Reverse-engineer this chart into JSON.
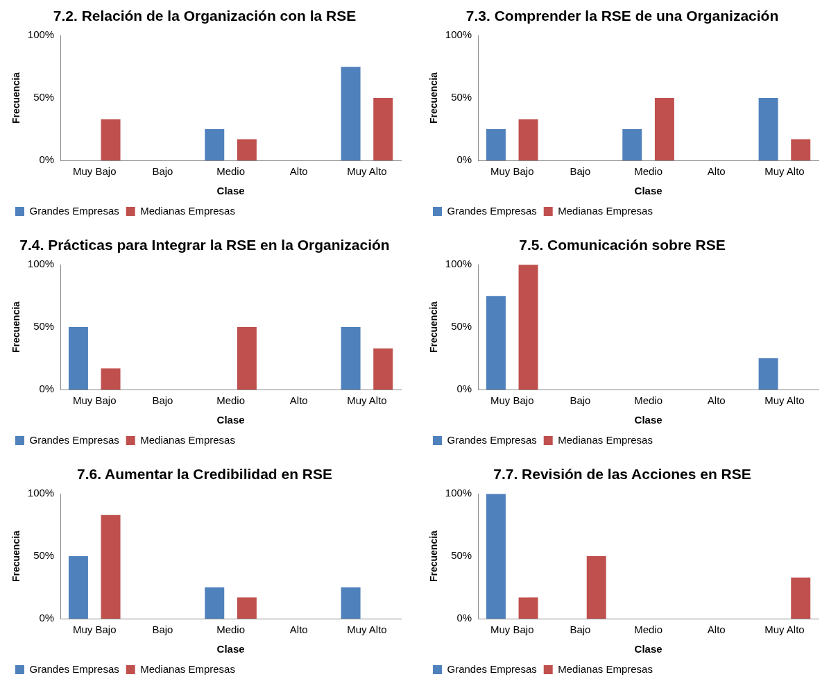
{
  "chart_data": [
    {
      "type": "bar",
      "title": "7.2. Relación de la Organización con la RSE",
      "xlabel": "Clase",
      "ylabel": "Frecuencia",
      "categories": [
        "Muy Bajo",
        "Bajo",
        "Medio",
        "Alto",
        "Muy Alto"
      ],
      "series": [
        {
          "name": "Grandes Empresas",
          "color": "#4f81bd",
          "values": [
            0,
            0,
            25,
            0,
            75
          ]
        },
        {
          "name": "Medianas Empresas",
          "color": "#c0504d",
          "values": [
            33,
            0,
            17,
            0,
            50
          ]
        }
      ],
      "ylim": [
        0,
        100
      ],
      "yticks": [
        {
          "value": 0,
          "label": "0%"
        },
        {
          "value": 50,
          "label": "50%"
        },
        {
          "value": 100,
          "label": "100%"
        }
      ],
      "legend": "bottom"
    },
    {
      "type": "bar",
      "title": "7.3. Comprender la RSE de una Organización",
      "xlabel": "Clase",
      "ylabel": "Frecuencia",
      "categories": [
        "Muy Bajo",
        "Bajo",
        "Medio",
        "Alto",
        "Muy Alto"
      ],
      "series": [
        {
          "name": "Grandes Empresas",
          "color": "#4f81bd",
          "values": [
            25,
            0,
            25,
            0,
            50
          ]
        },
        {
          "name": "Medianas Empresas",
          "color": "#c0504d",
          "values": [
            33,
            0,
            50,
            0,
            17
          ]
        }
      ],
      "ylim": [
        0,
        100
      ],
      "yticks": [
        {
          "value": 0,
          "label": "0%"
        },
        {
          "value": 50,
          "label": "50%"
        },
        {
          "value": 100,
          "label": "100%"
        }
      ],
      "legend": "bottom"
    },
    {
      "type": "bar",
      "title": "7.4. Prácticas para Integrar la RSE en la Organización",
      "xlabel": "Clase",
      "ylabel": "Frecuencia",
      "categories": [
        "Muy Bajo",
        "Bajo",
        "Medio",
        "Alto",
        "Muy Alto"
      ],
      "series": [
        {
          "name": "Grandes Empresas",
          "color": "#4f81bd",
          "values": [
            50,
            0,
            0,
            0,
            50
          ]
        },
        {
          "name": "Medianas Empresas",
          "color": "#c0504d",
          "values": [
            17,
            0,
            50,
            0,
            33
          ]
        }
      ],
      "ylim": [
        0,
        100
      ],
      "yticks": [
        {
          "value": 0,
          "label": "0%"
        },
        {
          "value": 50,
          "label": "50%"
        },
        {
          "value": 100,
          "label": "100%"
        }
      ],
      "legend": "bottom"
    },
    {
      "type": "bar",
      "title": "7.5. Comunicación sobre RSE",
      "xlabel": "Clase",
      "ylabel": "Frecuencia",
      "categories": [
        "Muy Bajo",
        "Bajo",
        "Medio",
        "Alto",
        "Muy Alto"
      ],
      "series": [
        {
          "name": "Grandes Empresas",
          "color": "#4f81bd",
          "values": [
            75,
            0,
            0,
            0,
            25
          ]
        },
        {
          "name": "Medianas Empresas",
          "color": "#c0504d",
          "values": [
            100,
            0,
            0,
            0,
            0
          ]
        }
      ],
      "ylim": [
        0,
        100
      ],
      "yticks": [
        {
          "value": 0,
          "label": "0%"
        },
        {
          "value": 50,
          "label": "50%"
        },
        {
          "value": 100,
          "label": "100%"
        }
      ],
      "legend": "bottom"
    },
    {
      "type": "bar",
      "title": "7.6. Aumentar la Credibilidad en RSE",
      "xlabel": "Clase",
      "ylabel": "Frecuencia",
      "categories": [
        "Muy Bajo",
        "Bajo",
        "Medio",
        "Alto",
        "Muy Alto"
      ],
      "series": [
        {
          "name": "Grandes Empresas",
          "color": "#4f81bd",
          "values": [
            50,
            0,
            25,
            0,
            25
          ]
        },
        {
          "name": "Medianas Empresas",
          "color": "#c0504d",
          "values": [
            83,
            0,
            17,
            0,
            0
          ]
        }
      ],
      "ylim": [
        0,
        100
      ],
      "yticks": [
        {
          "value": 0,
          "label": "0%"
        },
        {
          "value": 50,
          "label": "50%"
        },
        {
          "value": 100,
          "label": "100%"
        }
      ],
      "legend": "bottom"
    },
    {
      "type": "bar",
      "title": "7.7. Revisión de las Acciones en RSE",
      "xlabel": "Clase",
      "ylabel": "Frecuencia",
      "categories": [
        "Muy Bajo",
        "Bajo",
        "Medio",
        "Alto",
        "Muy Alto"
      ],
      "series": [
        {
          "name": "Grandes Empresas",
          "color": "#4f81bd",
          "values": [
            100,
            0,
            0,
            0,
            0
          ]
        },
        {
          "name": "Medianas Empresas",
          "color": "#c0504d",
          "values": [
            17,
            50,
            0,
            0,
            33
          ]
        }
      ],
      "ylim": [
        0,
        100
      ],
      "yticks": [
        {
          "value": 0,
          "label": "0%"
        },
        {
          "value": 50,
          "label": "50%"
        },
        {
          "value": 100,
          "label": "100%"
        }
      ],
      "legend": "bottom"
    }
  ]
}
